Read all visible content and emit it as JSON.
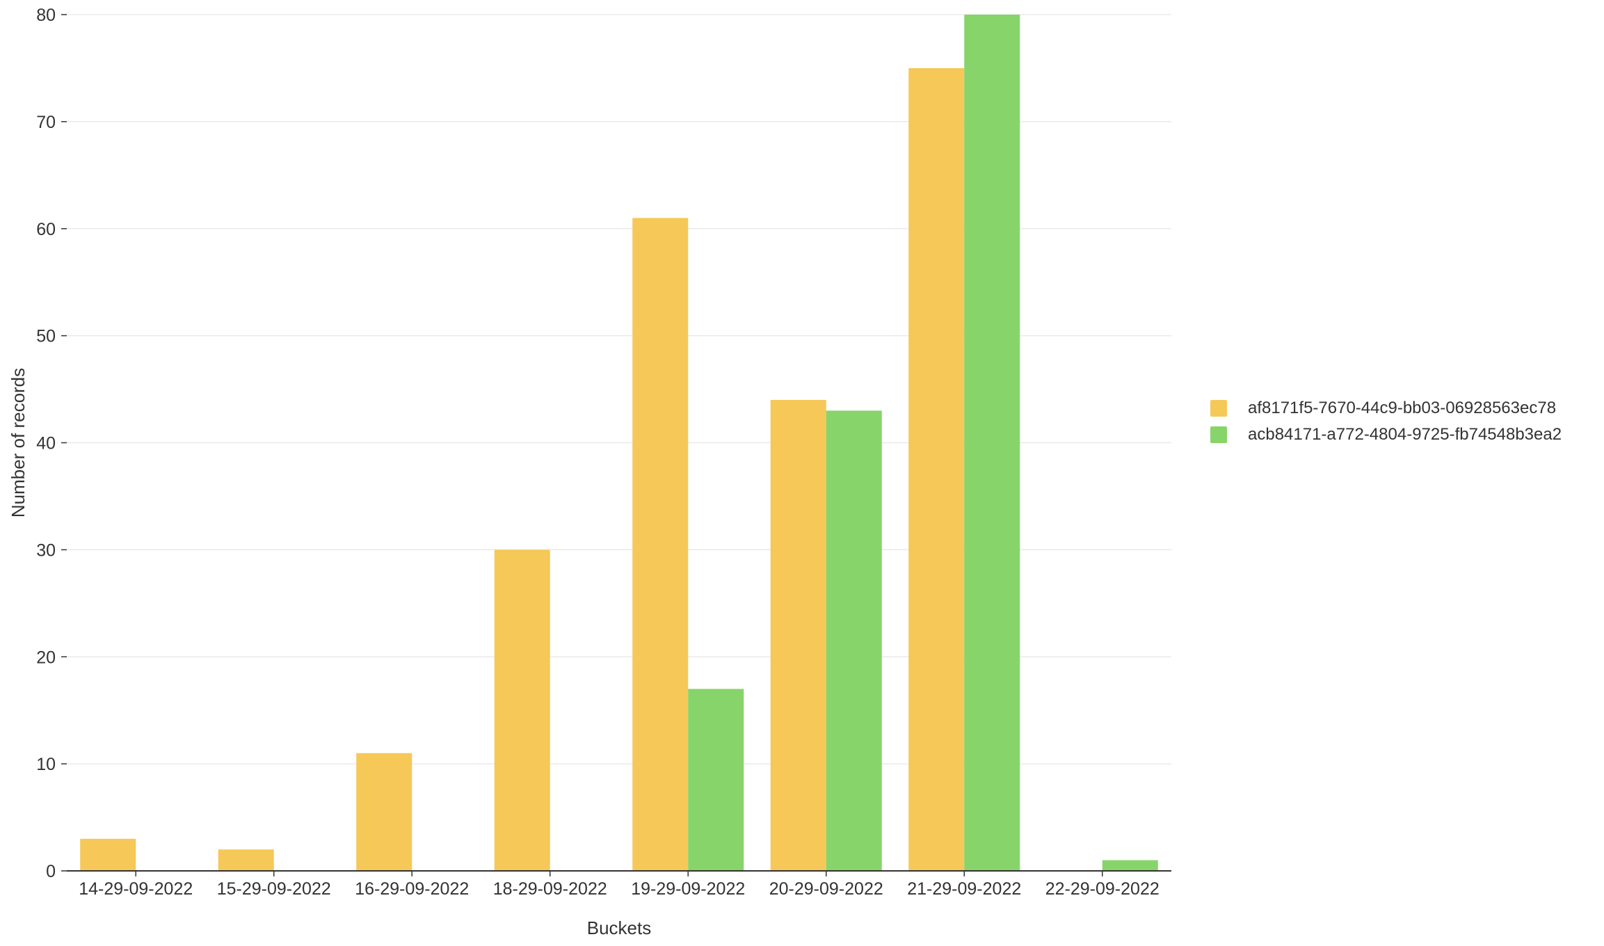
{
  "chart_data": {
    "type": "bar",
    "title": "",
    "xlabel": "Buckets",
    "ylabel": "Number of records",
    "ylim": [
      0,
      80
    ],
    "yticks": [
      0,
      10,
      20,
      30,
      40,
      50,
      60,
      70,
      80
    ],
    "grid": true,
    "legend_position": "right",
    "categories": [
      "14-29-09-2022",
      "15-29-09-2022",
      "16-29-09-2022",
      "18-29-09-2022",
      "19-29-09-2022",
      "20-29-09-2022",
      "21-29-09-2022",
      "22-29-09-2022"
    ],
    "series": [
      {
        "name": "af8171f5-7670-44c9-bb03-06928563ec78",
        "color": "#f5c857",
        "values": [
          3,
          2,
          11,
          30,
          61,
          44,
          75,
          0
        ]
      },
      {
        "name": "acb84171-a772-4804-9725-fb74548b3ea2",
        "color": "#87d46b",
        "values": [
          0,
          0,
          0,
          0,
          17,
          43,
          80,
          1
        ]
      }
    ]
  }
}
